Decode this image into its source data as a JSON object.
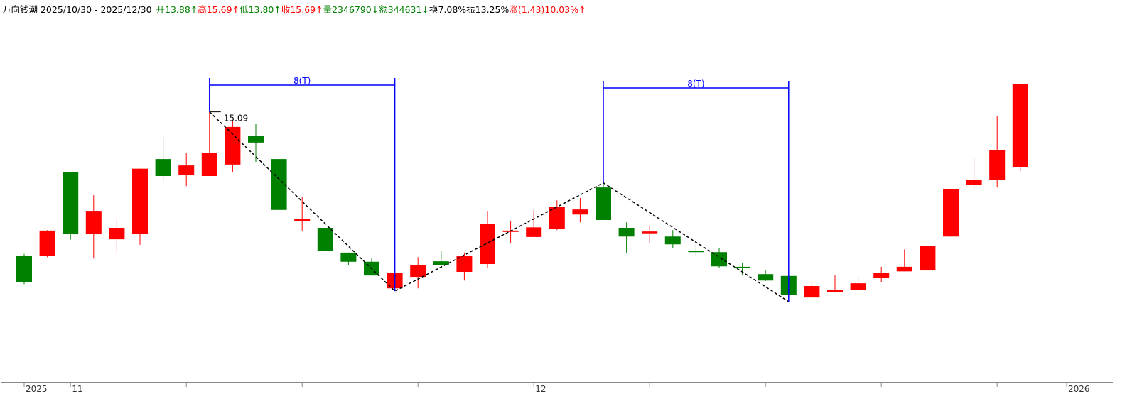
{
  "chart_data": {
    "type": "candlestick",
    "title": "万向钱潮 2025/10/30 - 2025/12/30",
    "header_items": [
      {
        "text": "开13.88↑",
        "color": "#008000"
      },
      {
        "text": "高15.69↑",
        "color": "#ff0000"
      },
      {
        "text": "低13.80↑",
        "color": "#008000"
      },
      {
        "text": "收15.69↑",
        "color": "#ff0000"
      },
      {
        "text": "量2346790↓",
        "color": "#008000"
      },
      {
        "text": "额344631↓",
        "color": "#008000"
      },
      {
        "text": "换7.08%",
        "color": "#000000"
      },
      {
        "text": "振13.25%",
        "color": "#000000"
      },
      {
        "text": "涨(1.43)10.03%↑",
        "color": "#ff0000"
      }
    ],
    "categories": [
      "2025",
      null,
      "11",
      null,
      null,
      null,
      null,
      null,
      null,
      null,
      null,
      null,
      null,
      null,
      null,
      null,
      null,
      null,
      null,
      null,
      null,
      null,
      "12",
      null,
      null,
      null,
      null,
      null,
      null,
      null,
      null,
      null,
      null,
      null,
      null,
      null,
      null,
      null,
      null,
      null,
      null,
      null,
      null,
      null
    ],
    "axis_end_label": "2026",
    "open": [
      11.95,
      11.95,
      13.77,
      12.42,
      12.31,
      12.42,
      14.06,
      13.72,
      13.69,
      13.94,
      14.56,
      14.06,
      12.71,
      12.56,
      12.02,
      11.82,
      11.24,
      11.49,
      11.83,
      11.6,
      11.77,
      12.47,
      12.36,
      12.53,
      12.85,
      13.44,
      12.56,
      12.44,
      12.37,
      12.06,
      12.03,
      11.71,
      11.55,
      11.51,
      11.04,
      11.16,
      11.21,
      11.47,
      11.61,
      11.63,
      12.37,
      13.49,
      13.61,
      13.88
    ],
    "high": [
      11.99,
      12.51,
      13.77,
      13.27,
      12.76,
      13.85,
      14.54,
      14.19,
      15.09,
      14.9,
      14.82,
      14.06,
      13.24,
      12.56,
      12.02,
      11.91,
      12.03,
      11.92,
      12.06,
      12.02,
      12.93,
      12.7,
      12.95,
      13.16,
      13.21,
      13.54,
      12.68,
      12.61,
      12.51,
      12.2,
      12.11,
      11.8,
      11.64,
      11.51,
      11.37,
      11.52,
      11.47,
      11.71,
      12.09,
      12.17,
      13.41,
      14.09,
      14.99,
      15.69
    ],
    "low": [
      11.33,
      11.92,
      12.3,
      11.89,
      12.02,
      12.19,
      13.58,
      13.47,
      13.69,
      13.78,
      14.0,
      12.95,
      12.5,
      12.06,
      11.75,
      11.52,
      11.18,
      11.24,
      11.72,
      11.41,
      11.69,
      12.22,
      12.36,
      12.51,
      12.68,
      12.73,
      12.02,
      12.23,
      12.11,
      11.95,
      11.69,
      11.52,
      11.4,
      10.95,
      11.04,
      11.16,
      11.21,
      11.38,
      11.61,
      11.63,
      12.37,
      13.41,
      13.44,
      13.8
    ],
    "close": [
      11.37,
      12.5,
      12.42,
      12.93,
      12.56,
      13.85,
      13.69,
      13.92,
      14.19,
      14.76,
      14.42,
      12.95,
      12.75,
      12.06,
      11.82,
      11.52,
      11.58,
      11.75,
      11.74,
      11.94,
      12.65,
      12.5,
      12.57,
      13.01,
      12.96,
      12.73,
      12.37,
      12.48,
      12.2,
      12.03,
      11.72,
      11.68,
      11.41,
      11.09,
      11.29,
      11.2,
      11.35,
      11.58,
      11.71,
      12.17,
      13.41,
      13.6,
      14.25,
      15.69
    ],
    "up_color": "#ff0000",
    "down_color": "#008000",
    "ylim": [
      9.2,
      17.22
    ],
    "annotations": [
      "15.09",
      "8(T)",
      "8(T)"
    ]
  }
}
